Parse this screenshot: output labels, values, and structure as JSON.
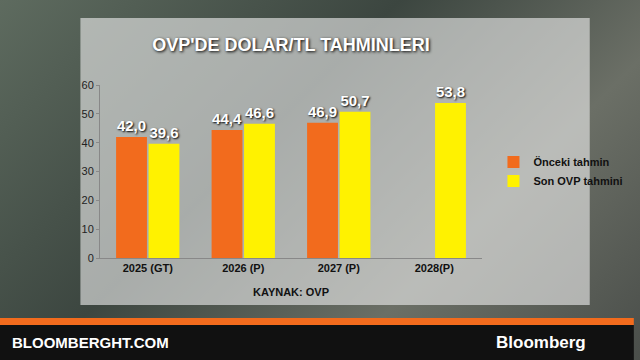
{
  "chart_data": {
    "type": "bar",
    "title": "OVP'DE DOLAR/TL TAHMINLERI",
    "categories": [
      "2025 (GT)",
      "2026 (P)",
      "2027 (P)",
      "2028(P)"
    ],
    "series": [
      {
        "name": "Önceki tahmin",
        "color": "#f26b1d",
        "values": [
          42.0,
          44.4,
          46.9,
          null
        ],
        "value_labels": [
          "42,0",
          "44,4",
          "46,9",
          null
        ]
      },
      {
        "name": "Son OVP tahmini",
        "color": "#fff200",
        "values": [
          39.6,
          46.6,
          50.7,
          53.8
        ],
        "value_labels": [
          "39,6",
          "46,6",
          "50,7",
          "53,8"
        ]
      }
    ],
    "ylim": [
      0,
      60
    ],
    "yticks": [
      0,
      10,
      20,
      30,
      40,
      50,
      60
    ],
    "grid": false,
    "legend": "right",
    "data_labels": true,
    "annotations": [
      "KAYNAK: OVP",
      "BLOOMBERGHT.COM",
      "Bloomberg"
    ]
  }
}
